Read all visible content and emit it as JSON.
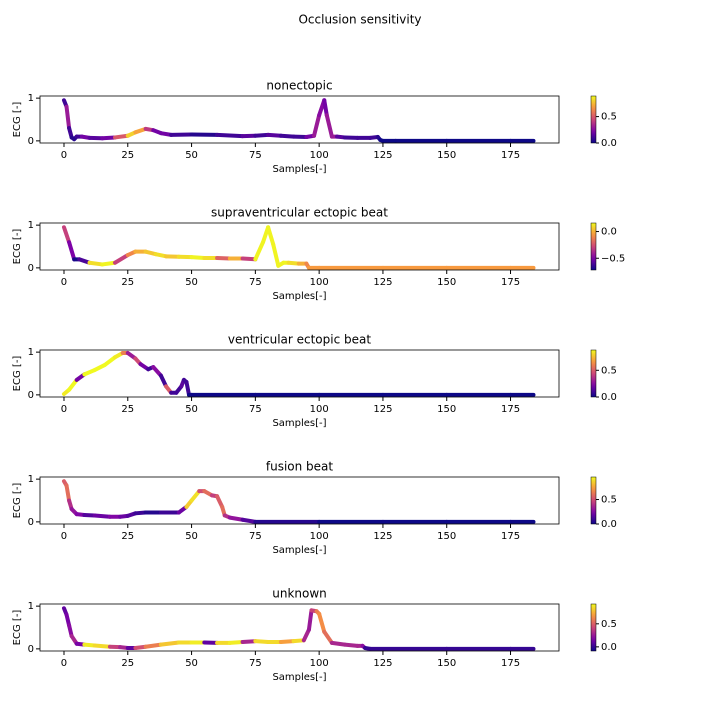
{
  "title": "Occlusion sensitivity",
  "chart_data": [
    {
      "type": "line",
      "title": "nonectopic",
      "x_label": "Samples[-]",
      "y_label": "ECG [-]",
      "colormap": "plasma",
      "x": [
        0,
        1,
        2,
        3,
        4,
        5,
        7,
        10,
        15,
        20,
        25,
        28,
        32,
        35,
        38,
        42,
        50,
        60,
        70,
        75,
        80,
        85,
        90,
        95,
        98,
        100,
        102,
        103,
        105,
        107,
        110,
        115,
        120,
        123,
        124,
        125,
        130,
        150,
        175,
        184
      ],
      "values": [
        0.95,
        0.8,
        0.3,
        0.08,
        0.04,
        0.1,
        0.1,
        0.07,
        0.06,
        0.08,
        0.12,
        0.2,
        0.28,
        0.25,
        0.18,
        0.14,
        0.15,
        0.14,
        0.11,
        0.12,
        0.14,
        0.12,
        0.1,
        0.09,
        0.12,
        0.6,
        0.95,
        0.6,
        0.1,
        0.1,
        0.08,
        0.07,
        0.07,
        0.09,
        0.02,
        0,
        0,
        0,
        0,
        0
      ],
      "sensitivity": [
        0.1,
        0.3,
        0.1,
        0.05,
        0.05,
        0.1,
        0.2,
        0.15,
        0.2,
        0.5,
        0.8,
        0.7,
        0.4,
        0.2,
        0.2,
        0.1,
        0.05,
        0.1,
        0.15,
        0.1,
        0.15,
        0.1,
        0.1,
        0.2,
        0.3,
        0.25,
        0.2,
        0.3,
        0.3,
        0.15,
        0.1,
        0.1,
        0.1,
        0.05,
        0,
        0,
        0,
        0,
        0,
        0
      ],
      "xlim": [
        -9.4,
        194
      ],
      "xticks": [
        0,
        25,
        50,
        75,
        100,
        125,
        150,
        175
      ],
      "ylim": [
        -0.05,
        1.05
      ],
      "yticks": [
        0,
        1
      ],
      "clim": [
        0,
        0.89
      ],
      "cticks": [
        {
          "value": 0,
          "label": "0.0"
        },
        {
          "value": 0.5,
          "label": "0.5"
        }
      ]
    },
    {
      "type": "line",
      "title": "supraventricular ectopic beat",
      "x_label": "Samples[-]",
      "y_label": "ECG [-]",
      "colormap": "plasma",
      "x": [
        0,
        2,
        4,
        6,
        10,
        15,
        20,
        25,
        28,
        32,
        36,
        40,
        45,
        50,
        55,
        60,
        65,
        70,
        75,
        78,
        80,
        82,
        84,
        86,
        88,
        92,
        95,
        96,
        100,
        125,
        150,
        175,
        184
      ],
      "values": [
        0.95,
        0.6,
        0.2,
        0.2,
        0.12,
        0.08,
        0.12,
        0.3,
        0.38,
        0.38,
        0.32,
        0.27,
        0.26,
        0.25,
        0.23,
        0.23,
        0.22,
        0.22,
        0.2,
        0.6,
        0.95,
        0.55,
        0.05,
        0.12,
        0.12,
        0.1,
        0.1,
        0,
        0,
        0,
        0,
        0,
        0
      ],
      "sensitivity": [
        -0.3,
        -0.5,
        -0.7,
        -0.6,
        0.1,
        0.15,
        -0.3,
        -0.1,
        0,
        0.05,
        0.1,
        0.05,
        0.1,
        0.15,
        0.1,
        -0.2,
        0,
        -0.3,
        0.15,
        0.15,
        0.15,
        0.15,
        0.15,
        0.15,
        0.1,
        0,
        -0.1,
        -0.05,
        -0.05,
        -0.05,
        -0.05,
        -0.05,
        -0.05
      ],
      "xlim": [
        -9.4,
        194
      ],
      "xticks": [
        0,
        25,
        50,
        75,
        100,
        125,
        150,
        175
      ],
      "ylim": [
        -0.05,
        1.05
      ],
      "yticks": [
        0,
        1
      ],
      "clim": [
        -0.72,
        0.16
      ],
      "cticks": [
        {
          "value": 0,
          "label": "0.0"
        },
        {
          "value": -0.5,
          "label": "−0.5"
        }
      ]
    },
    {
      "type": "line",
      "title": "ventricular ectopic beat",
      "x_label": "Samples[-]",
      "y_label": "ECG [-]",
      "colormap": "plasma",
      "x": [
        0,
        2,
        5,
        8,
        12,
        16,
        20,
        23,
        25,
        28,
        30,
        33,
        35,
        38,
        40,
        42,
        44,
        46,
        47,
        48,
        49,
        50,
        75,
        100,
        125,
        150,
        175,
        184
      ],
      "values": [
        0.02,
        0.12,
        0.35,
        0.48,
        0.58,
        0.7,
        0.88,
        0.98,
        0.98,
        0.85,
        0.72,
        0.6,
        0.65,
        0.45,
        0.2,
        0.05,
        0.05,
        0.2,
        0.35,
        0.3,
        0,
        0,
        0,
        0,
        0,
        0,
        0,
        0
      ],
      "sensitivity": [
        0.85,
        0.9,
        0.2,
        0.9,
        0.9,
        0.9,
        0.85,
        0.6,
        0.3,
        0.45,
        0.2,
        0.1,
        0.25,
        0.1,
        0.5,
        0.1,
        0.1,
        0.15,
        0.1,
        0.1,
        0,
        0,
        0,
        0,
        0,
        0,
        0,
        0
      ],
      "xlim": [
        -9.4,
        194
      ],
      "xticks": [
        0,
        25,
        50,
        75,
        100,
        125,
        150,
        175
      ],
      "ylim": [
        -0.05,
        1.05
      ],
      "yticks": [
        0,
        1
      ],
      "clim": [
        0,
        0.88
      ],
      "cticks": [
        {
          "value": 0,
          "label": "0.0"
        },
        {
          "value": 0.5,
          "label": "0.5"
        }
      ]
    },
    {
      "type": "line",
      "title": "fusion beat",
      "x_label": "Samples[-]",
      "y_label": "ECG [-]",
      "colormap": "plasma",
      "x": [
        0,
        1,
        2,
        3,
        5,
        8,
        12,
        18,
        22,
        25,
        28,
        32,
        38,
        45,
        48,
        50,
        53,
        55,
        58,
        60,
        62,
        63,
        65,
        70,
        75,
        100,
        125,
        150,
        175,
        184
      ],
      "values": [
        0.95,
        0.85,
        0.5,
        0.3,
        0.18,
        0.16,
        0.15,
        0.12,
        0.12,
        0.14,
        0.2,
        0.22,
        0.22,
        0.22,
        0.35,
        0.5,
        0.72,
        0.72,
        0.62,
        0.6,
        0.35,
        0.15,
        0.1,
        0.05,
        0,
        0,
        0,
        0,
        0,
        0
      ],
      "sensitivity": [
        0.55,
        0.6,
        0.4,
        0.3,
        0.25,
        0.15,
        0.2,
        0.25,
        0.2,
        0.15,
        0.1,
        0.05,
        0.1,
        0.2,
        0.85,
        0.9,
        0.5,
        0.6,
        0.45,
        0.55,
        0.6,
        0.4,
        0.3,
        0.15,
        0.05,
        0,
        0,
        0,
        0,
        0
      ],
      "xlim": [
        -9.4,
        194
      ],
      "xticks": [
        0,
        25,
        50,
        75,
        100,
        125,
        150,
        175
      ],
      "ylim": [
        -0.05,
        1.05
      ],
      "yticks": [
        0,
        1
      ],
      "clim": [
        0,
        0.96
      ],
      "cticks": [
        {
          "value": 0,
          "label": "0.0"
        },
        {
          "value": 0.5,
          "label": "0.5"
        }
      ]
    },
    {
      "type": "line",
      "title": "unknown",
      "x_label": "Samples[-]",
      "y_label": "ECG [-]",
      "colormap": "plasma",
      "x": [
        0,
        1,
        2,
        3,
        5,
        8,
        12,
        18,
        22,
        25,
        28,
        32,
        38,
        45,
        50,
        55,
        60,
        65,
        70,
        75,
        80,
        85,
        90,
        94,
        96,
        97,
        99,
        100,
        102,
        105,
        110,
        115,
        117,
        118,
        120,
        150,
        175,
        184
      ],
      "values": [
        0.95,
        0.8,
        0.55,
        0.3,
        0.12,
        0.1,
        0.08,
        0.05,
        0.04,
        0.02,
        0.02,
        0.05,
        0.1,
        0.15,
        0.15,
        0.15,
        0.14,
        0.14,
        0.16,
        0.18,
        0.16,
        0.16,
        0.18,
        0.2,
        0.45,
        0.9,
        0.88,
        0.82,
        0.4,
        0.14,
        0.1,
        0.07,
        0.07,
        0.02,
        0,
        0,
        0,
        0
      ],
      "sensitivity": [
        0.1,
        0.15,
        0.2,
        0.3,
        0.15,
        0.9,
        0.85,
        0.4,
        0.3,
        0.1,
        0.45,
        0.6,
        0.8,
        0.85,
        0.9,
        0.1,
        0.85,
        0.9,
        0.3,
        0.85,
        0.85,
        0.7,
        0.85,
        0.3,
        0.25,
        0.4,
        0.6,
        0.65,
        0.55,
        0.3,
        0.3,
        0.3,
        0.2,
        0,
        0,
        0,
        0,
        0
      ],
      "xlim": [
        -9.4,
        194
      ],
      "xticks": [
        0,
        25,
        50,
        75,
        100,
        125,
        150,
        175
      ],
      "ylim": [
        -0.05,
        1.05
      ],
      "yticks": [
        0,
        1
      ],
      "clim": [
        -0.09,
        0.93
      ],
      "cticks": [
        {
          "value": 0,
          "label": "0.0"
        },
        {
          "value": 0.5,
          "label": "0.5"
        }
      ]
    }
  ]
}
